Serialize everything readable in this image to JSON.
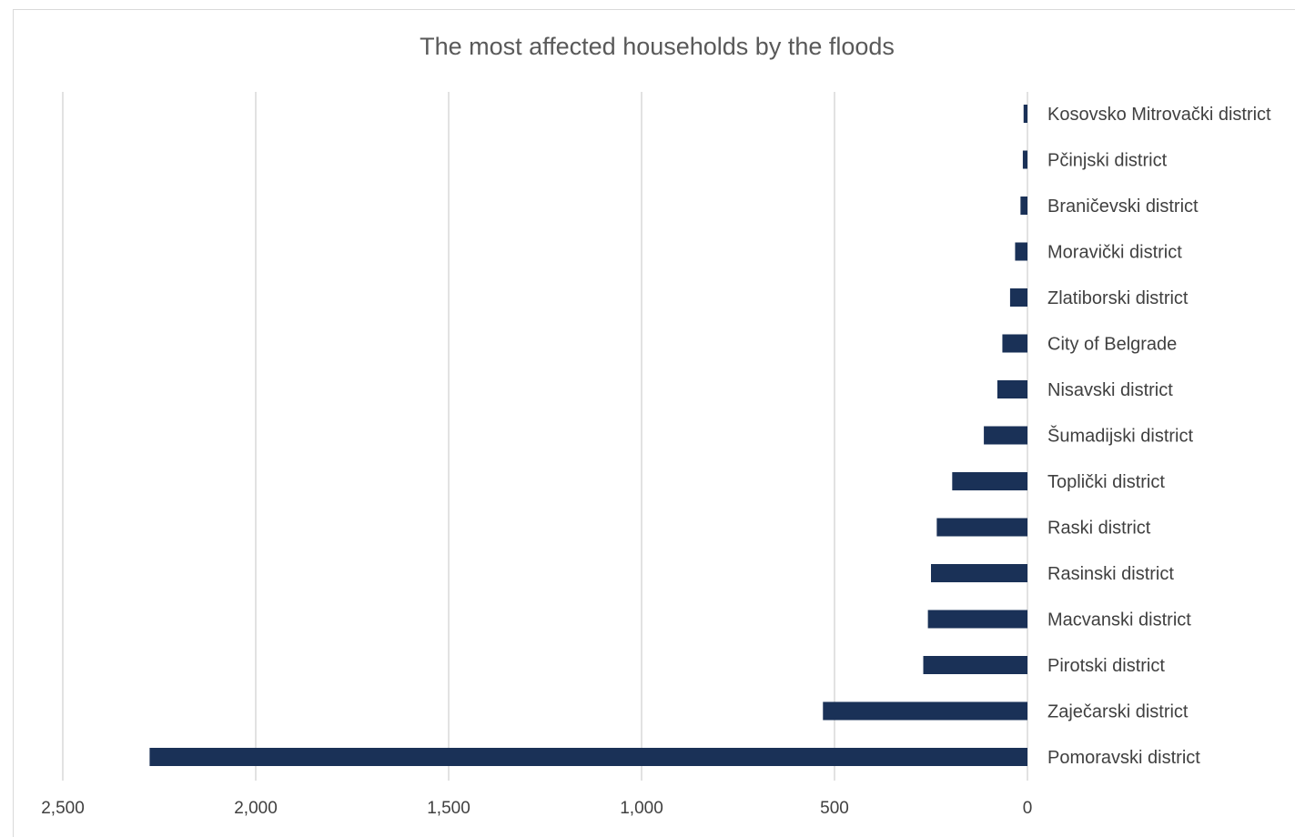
{
  "chart_data": {
    "type": "bar",
    "orientation": "horizontal",
    "x_axis_reversed": true,
    "title": "The most affected households by the floods",
    "xlabel": "",
    "ylabel": "",
    "xlim": [
      0,
      2500
    ],
    "x_ticks": [
      2500,
      2000,
      1500,
      1000,
      500,
      0
    ],
    "x_tick_labels": [
      "2,500",
      "2,000",
      "1,500",
      "1,000",
      "500",
      "0"
    ],
    "grid": "vertical",
    "bar_color": "#1a3157",
    "categories": [
      "Kosovsko Mitrovački district",
      "Pčinjski district",
      "Braničevski district",
      "Moravički district",
      "Zlatiborski district",
      "City of Belgrade",
      "Nisavski district",
      "Šumadijski district",
      "Toplički district",
      "Raski district",
      "Rasinski district",
      "Macvanski district",
      "Pirotski district",
      "Zaječarski district",
      "Pomoravski district"
    ],
    "values": [
      10,
      12,
      18,
      32,
      45,
      65,
      78,
      113,
      195,
      235,
      250,
      258,
      270,
      530,
      2275
    ]
  }
}
